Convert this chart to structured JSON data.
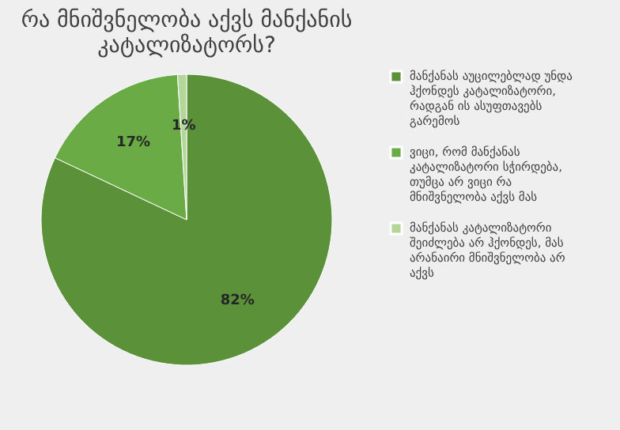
{
  "chart_data": {
    "type": "pie",
    "title": "რა მნიშვნელობა აქვს მანქანის კატალიზატორს?",
    "categories": [
      "მანქანას აუცილებლად უნდა ჰქონდეს კატალიზატორი, რადგან ის ასუფთავებს გარემოს",
      "ვიცი, რომ მანქანას კატალიზატორი სჭირდება, თუმცა არ ვიცი რა მნიშვნელობა აქვს მას",
      "მანქანას კატალიზატორი შეიძლება არ ჰქონდეს, მას არანაირი მნიშვნელობა არ აქვს"
    ],
    "values": [
      82,
      17,
      1
    ],
    "colors": [
      "#5b9138",
      "#6aab45",
      "#b3d69b"
    ],
    "value_labels": [
      "82%",
      "17%",
      "1%"
    ],
    "legend": "right"
  }
}
